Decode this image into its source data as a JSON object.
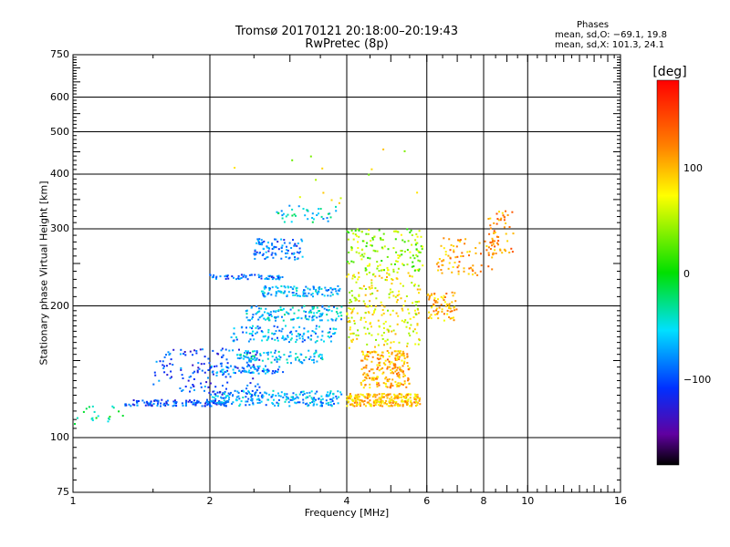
{
  "chart_data": {
    "type": "scatter",
    "title": "Tromsø 20170121 20:18:00–20:19:43",
    "subtitle": "RwPretec (8p)",
    "xlabel": "Frequency [MHz]",
    "ylabel": "Stationary phase Virtual Height [km]",
    "x_scale": "log",
    "y_scale": "log",
    "xlim": [
      1,
      16
    ],
    "ylim": [
      75,
      750
    ],
    "x_ticks": [
      "1",
      "2",
      "4",
      "6",
      "8",
      "10",
      "16"
    ],
    "y_ticks": [
      "75",
      "100",
      "200",
      "300",
      "400",
      "500",
      "600",
      "750"
    ],
    "grid": true,
    "stats": {
      "heading": "Phases",
      "line_o": "mean, sd,O: −69.1, 19.8",
      "line_x": "mean, sd,X: 101.3, 24.1"
    },
    "colorbar": {
      "label": "[deg]",
      "ticks": [
        "100",
        "0",
        "−100"
      ],
      "range": [
        -180,
        180
      ],
      "colormap": "rainbow"
    },
    "clusters": [
      {
        "f1": 1.3,
        "f2": 2.2,
        "h1": 118,
        "h2": 122,
        "phase": -100,
        "count": 130
      },
      {
        "f1": 2.0,
        "f2": 3.9,
        "h1": 118,
        "h2": 128,
        "phase": -70,
        "count": 220
      },
      {
        "f1": 4.0,
        "f2": 5.8,
        "h1": 118,
        "h2": 126,
        "phase": 95,
        "count": 260
      },
      {
        "f1": 4.3,
        "f2": 5.5,
        "h1": 130,
        "h2": 158,
        "phase": 100,
        "count": 220
      },
      {
        "f1": 1.5,
        "f2": 2.6,
        "h1": 125,
        "h2": 160,
        "phase": -100,
        "count": 160
      },
      {
        "f1": 2.0,
        "f2": 2.9,
        "h1": 140,
        "h2": 146,
        "phase": -80,
        "count": 70
      },
      {
        "f1": 2.3,
        "f2": 3.6,
        "h1": 148,
        "h2": 158,
        "phase": -60,
        "count": 90
      },
      {
        "f1": 2.2,
        "f2": 3.8,
        "h1": 165,
        "h2": 180,
        "phase": -70,
        "count": 120
      },
      {
        "f1": 2.4,
        "f2": 3.9,
        "h1": 185,
        "h2": 200,
        "phase": -60,
        "count": 130
      },
      {
        "f1": 2.6,
        "f2": 3.9,
        "h1": 210,
        "h2": 222,
        "phase": -65,
        "count": 110
      },
      {
        "f1": 2.0,
        "f2": 2.9,
        "h1": 230,
        "h2": 236,
        "phase": -90,
        "count": 60
      },
      {
        "f1": 2.5,
        "f2": 3.2,
        "h1": 255,
        "h2": 285,
        "phase": -90,
        "count": 90
      },
      {
        "f1": 2.8,
        "f2": 3.8,
        "h1": 310,
        "h2": 340,
        "phase": -50,
        "count": 40
      },
      {
        "f1": 4.0,
        "f2": 5.8,
        "h1": 160,
        "h2": 240,
        "phase": 70,
        "count": 230
      },
      {
        "f1": 4.0,
        "f2": 5.9,
        "h1": 240,
        "h2": 300,
        "phase": 40,
        "count": 150
      },
      {
        "f1": 6.0,
        "f2": 7.0,
        "h1": 185,
        "h2": 215,
        "phase": 100,
        "count": 70
      },
      {
        "f1": 6.3,
        "f2": 8.5,
        "h1": 235,
        "h2": 290,
        "phase": 110,
        "count": 80
      },
      {
        "f1": 8.2,
        "f2": 9.3,
        "h1": 260,
        "h2": 330,
        "phase": 115,
        "count": 60
      },
      {
        "f1": 1.0,
        "f2": 1.3,
        "h1": 107,
        "h2": 120,
        "phase": -20,
        "count": 20
      },
      {
        "f1": 1.9,
        "f2": 6.0,
        "h1": 340,
        "h2": 460,
        "phase": 60,
        "count": 15
      }
    ]
  }
}
